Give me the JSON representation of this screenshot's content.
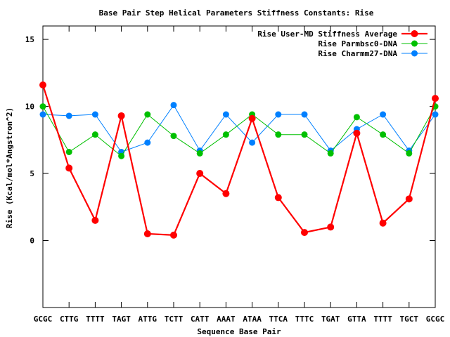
{
  "chart_data": {
    "type": "line",
    "title": "Base Pair Step Helical Parameters Stiffness Constants: Rise",
    "xlabel": "Sequence Base Pair",
    "ylabel": "Rise (Kcal/mol*Angstron^2)",
    "categories": [
      "GCGC",
      "CTTG",
      "TTTT",
      "TAGT",
      "ATTG",
      "TCTT",
      "CATT",
      "AAAT",
      "ATAA",
      "TTCA",
      "TTTC",
      "TGAT",
      "GTTA",
      "TTTT",
      "TGCT",
      "GCGC"
    ],
    "ylim": [
      -5,
      16
    ],
    "yticks": [
      0,
      5,
      10,
      15
    ],
    "grid": false,
    "legend": "top-right",
    "series": [
      {
        "name": "Rise User-MD Stiffness Average",
        "color": "#ff0000",
        "values": [
          11.6,
          5.4,
          1.5,
          9.3,
          0.5,
          0.4,
          5.0,
          3.5,
          9.1,
          3.2,
          0.6,
          1.0,
          8.0,
          1.3,
          3.1,
          10.6
        ]
      },
      {
        "name": "Rise Parmbsc0-DNA",
        "color": "#00c000",
        "values": [
          10.0,
          6.6,
          7.9,
          6.3,
          9.4,
          7.8,
          6.5,
          7.9,
          9.4,
          7.9,
          7.9,
          6.5,
          9.2,
          7.9,
          6.5,
          10.0
        ]
      },
      {
        "name": "Rise Charmm27-DNA",
        "color": "#0080ff",
        "values": [
          9.4,
          9.3,
          9.4,
          6.6,
          7.3,
          10.1,
          6.7,
          9.4,
          7.3,
          9.4,
          9.4,
          6.7,
          8.3,
          9.4,
          6.7,
          9.4
        ]
      }
    ]
  }
}
